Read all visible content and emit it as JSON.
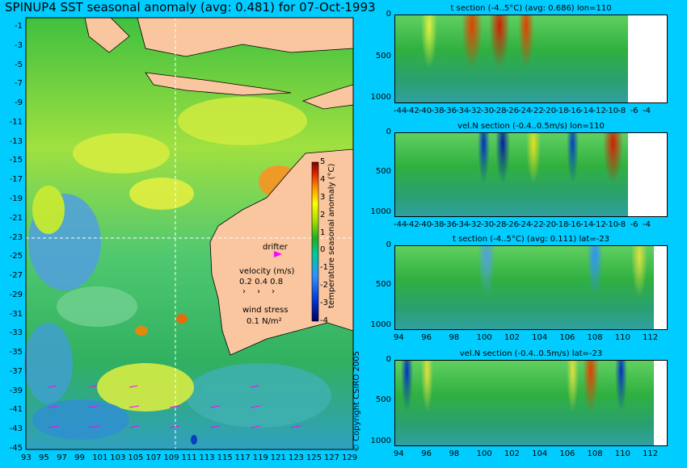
{
  "title": "SPINUP4 SST seasonal anomaly (avg: 0.481) for 07-Oct-1993",
  "copyright": "© Copyright CSIRO 2005",
  "colors": {
    "background": "#00ccff",
    "land": "#f9c69f",
    "vector": "#ff00ff"
  },
  "map": {
    "lat_ticks": [
      "-1",
      "-3",
      "-5",
      "-7",
      "-9",
      "-11",
      "-13",
      "-15",
      "-17",
      "-19",
      "-21",
      "-23",
      "-25",
      "-27",
      "-29",
      "-31",
      "-33",
      "-35",
      "-37",
      "-39",
      "-41",
      "-43",
      "-45"
    ],
    "lon_ticks": [
      "93",
      "95",
      "97",
      "99",
      "101",
      "103",
      "105",
      "107",
      "109",
      "111",
      "113",
      "115",
      "117",
      "119",
      "121",
      "123",
      "125",
      "127",
      "129"
    ],
    "drifter_label": "drifter",
    "velocity_label": "velocity (m/s)",
    "velocity_scale": "0.2 0.4 0.8",
    "wind_label": "wind stress",
    "wind_scale": "0.1 N/m²",
    "colorbar_ticks": [
      "5",
      "4",
      "3",
      "2",
      "1",
      "0",
      "-1",
      "-2",
      "-3",
      "-4"
    ],
    "colorbar_label": "temperature seasonal anomaly (°C)"
  },
  "panels": [
    {
      "title": "t section (-4..5°C) (avg: 0.686) lon=110",
      "x_ticks": [
        "-44",
        "-42",
        "-40",
        "-38",
        "-36",
        "-34",
        "-32",
        "-30",
        "-28",
        "-26",
        "-24",
        "-22",
        "-20",
        "-18",
        "-16",
        "-14",
        "-12",
        "-10",
        "-8",
        "-6",
        "-4"
      ],
      "y_ticks": [
        "0",
        "500",
        "1000"
      ]
    },
    {
      "title": "vel.N section (-0.4..0.5m/s) lon=110",
      "x_ticks": [
        "-44",
        "-42",
        "-40",
        "-38",
        "-36",
        "-34",
        "-32",
        "-30",
        "-28",
        "-26",
        "-24",
        "-22",
        "-20",
        "-18",
        "-16",
        "-14",
        "-12",
        "-10",
        "-8",
        "-6",
        "-4"
      ],
      "y_ticks": [
        "0",
        "500",
        "1000"
      ]
    },
    {
      "title": "t section (-4..5°C) (avg: 0.111) lat=-23",
      "x_ticks": [
        "94",
        "96",
        "98",
        "100",
        "102",
        "104",
        "106",
        "108",
        "110",
        "112"
      ],
      "y_ticks": [
        "0",
        "500",
        "1000"
      ]
    },
    {
      "title": "vel.N section (-0.4..0.5m/s) lat=-23",
      "x_ticks": [
        "94",
        "96",
        "98",
        "100",
        "102",
        "104",
        "106",
        "108",
        "110",
        "112"
      ],
      "y_ticks": [
        "0",
        "500",
        "1000"
      ]
    }
  ],
  "chart_data": [
    {
      "type": "heatmap",
      "title": "SPINUP4 SST seasonal anomaly (avg: 0.481) for 07-Oct-1993",
      "xlim": [
        93,
        130
      ],
      "ylim": [
        -45,
        0
      ],
      "colorbar_range": [
        -4,
        5
      ]
    },
    {
      "type": "heatmap",
      "title": "t section (-4..5°C) (avg: 0.686) lon=110",
      "xlim": [
        -45,
        -3
      ],
      "ylim": [
        1050,
        0
      ]
    },
    {
      "type": "heatmap",
      "title": "vel.N section (-0.4..0.5m/s) lon=110",
      "xlim": [
        -45,
        -3
      ],
      "ylim": [
        1050,
        0
      ]
    },
    {
      "type": "heatmap",
      "title": "t section (-4..5°C) (avg: 0.111) lat=-23",
      "xlim": [
        93,
        114
      ],
      "ylim": [
        1050,
        0
      ]
    },
    {
      "type": "heatmap",
      "title": "vel.N section (-0.4..0.5m/s) lat=-23",
      "xlim": [
        93,
        114
      ],
      "ylim": [
        1050,
        0
      ]
    }
  ]
}
